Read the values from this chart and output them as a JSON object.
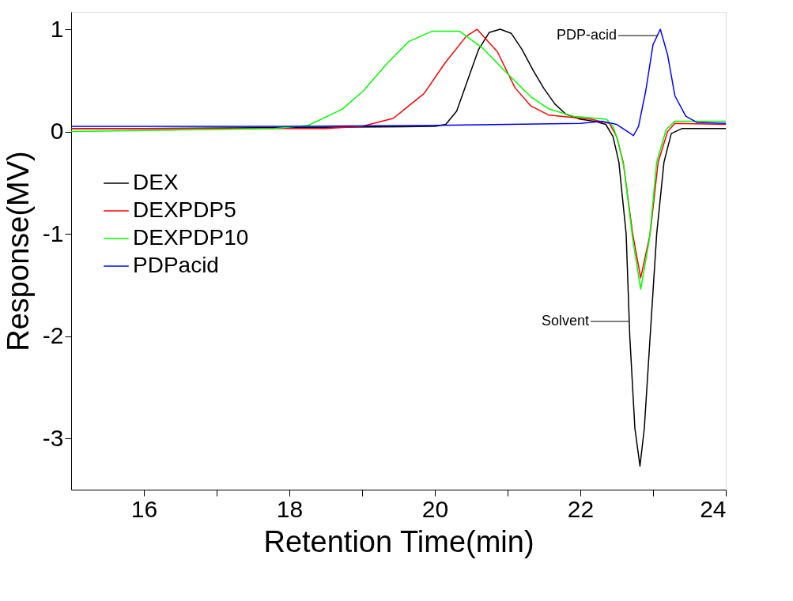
{
  "chart_data": {
    "type": "line",
    "xlabel": "Retention Time(min)",
    "ylabel": "Response(MV)",
    "xlim": [
      15,
      24
    ],
    "ylim": [
      -3.5,
      1.17
    ],
    "xticks": [
      16,
      {
        "value": 17,
        "label": null
      },
      18,
      {
        "value": 19,
        "label": null
      },
      20,
      {
        "value": 21,
        "label": null
      },
      22,
      {
        "value": 23,
        "label": null
      },
      24
    ],
    "yticks": [
      -3,
      -2,
      -1,
      0,
      1
    ],
    "grid": false,
    "legend": "left",
    "marker": "none",
    "line_style": "solid",
    "series": [
      {
        "name": "DEX",
        "color": "#000000",
        "x": [
          15,
          16,
          18,
          20,
          20.15,
          20.3,
          20.45,
          20.6,
          20.75,
          20.9,
          21.05,
          21.2,
          21.35,
          21.5,
          21.65,
          21.8,
          22.0,
          22.2,
          22.35,
          22.45,
          22.53,
          22.63,
          22.68,
          22.75,
          22.82,
          22.88,
          22.96,
          23.05,
          23.15,
          23.25,
          23.4,
          24
        ],
        "values": [
          0.03,
          0.03,
          0.04,
          0.05,
          0.07,
          0.2,
          0.5,
          0.8,
          0.97,
          1.0,
          0.96,
          0.8,
          0.6,
          0.42,
          0.27,
          0.17,
          0.12,
          0.1,
          0.07,
          -0.05,
          -0.3,
          -1.0,
          -2.0,
          -2.9,
          -3.27,
          -2.9,
          -2.0,
          -1.0,
          -0.3,
          -0.02,
          0.03,
          0.03
        ]
      },
      {
        "name": "DEXPDP5",
        "color": "#ff0000",
        "x": [
          15,
          17,
          18.5,
          19.0,
          19.43,
          19.85,
          20.14,
          20.43,
          20.58,
          20.86,
          21.1,
          21.32,
          21.57,
          22.15,
          22.4,
          22.5,
          22.59,
          22.72,
          22.83,
          22.96,
          23.07,
          23.2,
          23.3,
          24
        ],
        "values": [
          0.03,
          0.03,
          0.03,
          0.05,
          0.13,
          0.37,
          0.67,
          0.93,
          1.0,
          0.78,
          0.43,
          0.25,
          0.16,
          0.12,
          0.08,
          -0.05,
          -0.3,
          -1.0,
          -1.43,
          -1.0,
          -0.3,
          0.0,
          0.08,
          0.07
        ]
      },
      {
        "name": "DEXPDP10",
        "color": "#00ff00",
        "x": [
          15,
          16,
          17.8,
          18.26,
          18.73,
          19.02,
          19.35,
          19.64,
          19.96,
          20.34,
          20.65,
          21.02,
          21.32,
          21.57,
          21.9,
          22.36,
          22.45,
          22.52,
          22.6,
          22.72,
          22.83,
          22.95,
          23.05,
          23.18,
          23.3,
          24
        ],
        "values": [
          0.0,
          0.01,
          0.03,
          0.06,
          0.22,
          0.4,
          0.67,
          0.88,
          0.98,
          0.98,
          0.82,
          0.55,
          0.34,
          0.22,
          0.15,
          0.12,
          0.05,
          -0.1,
          -0.35,
          -1.05,
          -1.54,
          -1.05,
          -0.3,
          0.02,
          0.1,
          0.1
        ]
      },
      {
        "name": "PDPacid",
        "color": "#0000ff",
        "x": [
          15,
          18,
          20,
          22,
          22.3,
          22.5,
          22.65,
          22.73,
          22.8,
          22.9,
          23.0,
          23.1,
          23.2,
          23.3,
          23.45,
          23.6,
          24
        ],
        "values": [
          0.05,
          0.05,
          0.06,
          0.08,
          0.1,
          0.07,
          0.0,
          -0.04,
          0.05,
          0.4,
          0.85,
          1.0,
          0.75,
          0.35,
          0.15,
          0.09,
          0.08
        ]
      }
    ],
    "annotations": [
      "PDP-acid",
      "Solvent"
    ]
  }
}
